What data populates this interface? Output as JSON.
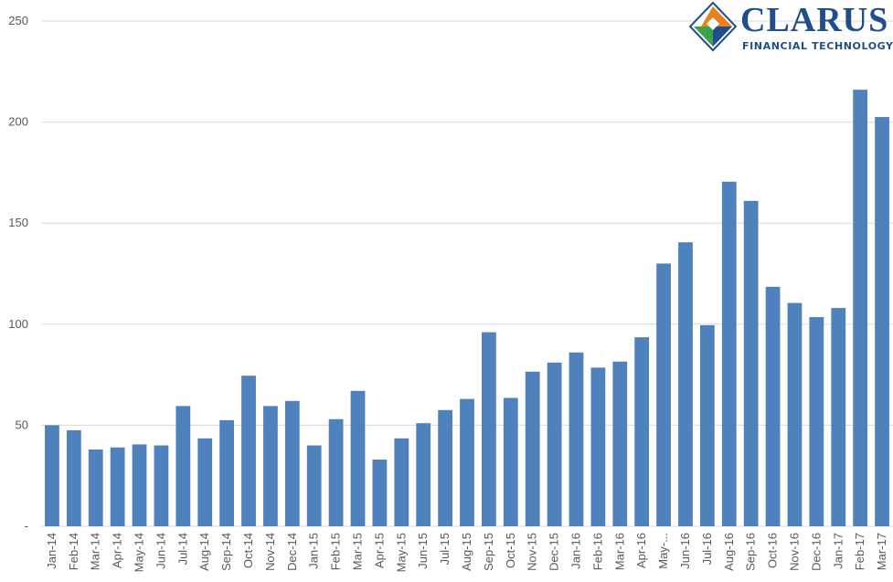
{
  "logo": {
    "name": "CLARUS",
    "tagline": "FINANCIAL TECHNOLOGY",
    "colors": {
      "orange": "#e8821c",
      "blue": "#1f4e8c",
      "green": "#3aa346"
    }
  },
  "chart_data": {
    "type": "bar",
    "title": "",
    "xlabel": "",
    "ylabel": "",
    "ylim": [
      0,
      250
    ],
    "yticks": [
      "-",
      "50",
      "100",
      "150",
      "200",
      "250"
    ],
    "grid": true,
    "bar_color": "#4f81bd",
    "categories": [
      "Jan-14",
      "Feb-14",
      "Mar-14",
      "Apr-14",
      "May-14",
      "Jun-14",
      "Jul-14",
      "Aug-14",
      "Sep-14",
      "Oct-14",
      "Nov-14",
      "Dec-14",
      "Jan-15",
      "Feb-15",
      "Mar-15",
      "Apr-15",
      "May-15",
      "Jun-15",
      "Jul-15",
      "Aug-15",
      "Sep-15",
      "Oct-15",
      "Nov-15",
      "Dec-15",
      "Jan-16",
      "Feb-16",
      "Mar-16",
      "Apr-16",
      "May-...",
      "Jun-16",
      "Jul-16",
      "Aug-16",
      "Sep-16",
      "Oct-16",
      "Nov-16",
      "Dec-16",
      "Jan-17",
      "Feb-17",
      "Mar-17"
    ],
    "values": [
      50,
      47.5,
      38,
      39,
      40.5,
      40,
      59.5,
      43.5,
      52.5,
      74.5,
      59.5,
      62,
      40,
      53,
      67,
      33,
      43.5,
      51,
      57.5,
      63,
      96,
      63.5,
      76.5,
      81,
      86,
      78.5,
      81.5,
      93.5,
      130,
      140.5,
      99.5,
      170.5,
      161,
      118.5,
      110.5,
      103.5,
      108,
      216,
      202.5
    ]
  }
}
